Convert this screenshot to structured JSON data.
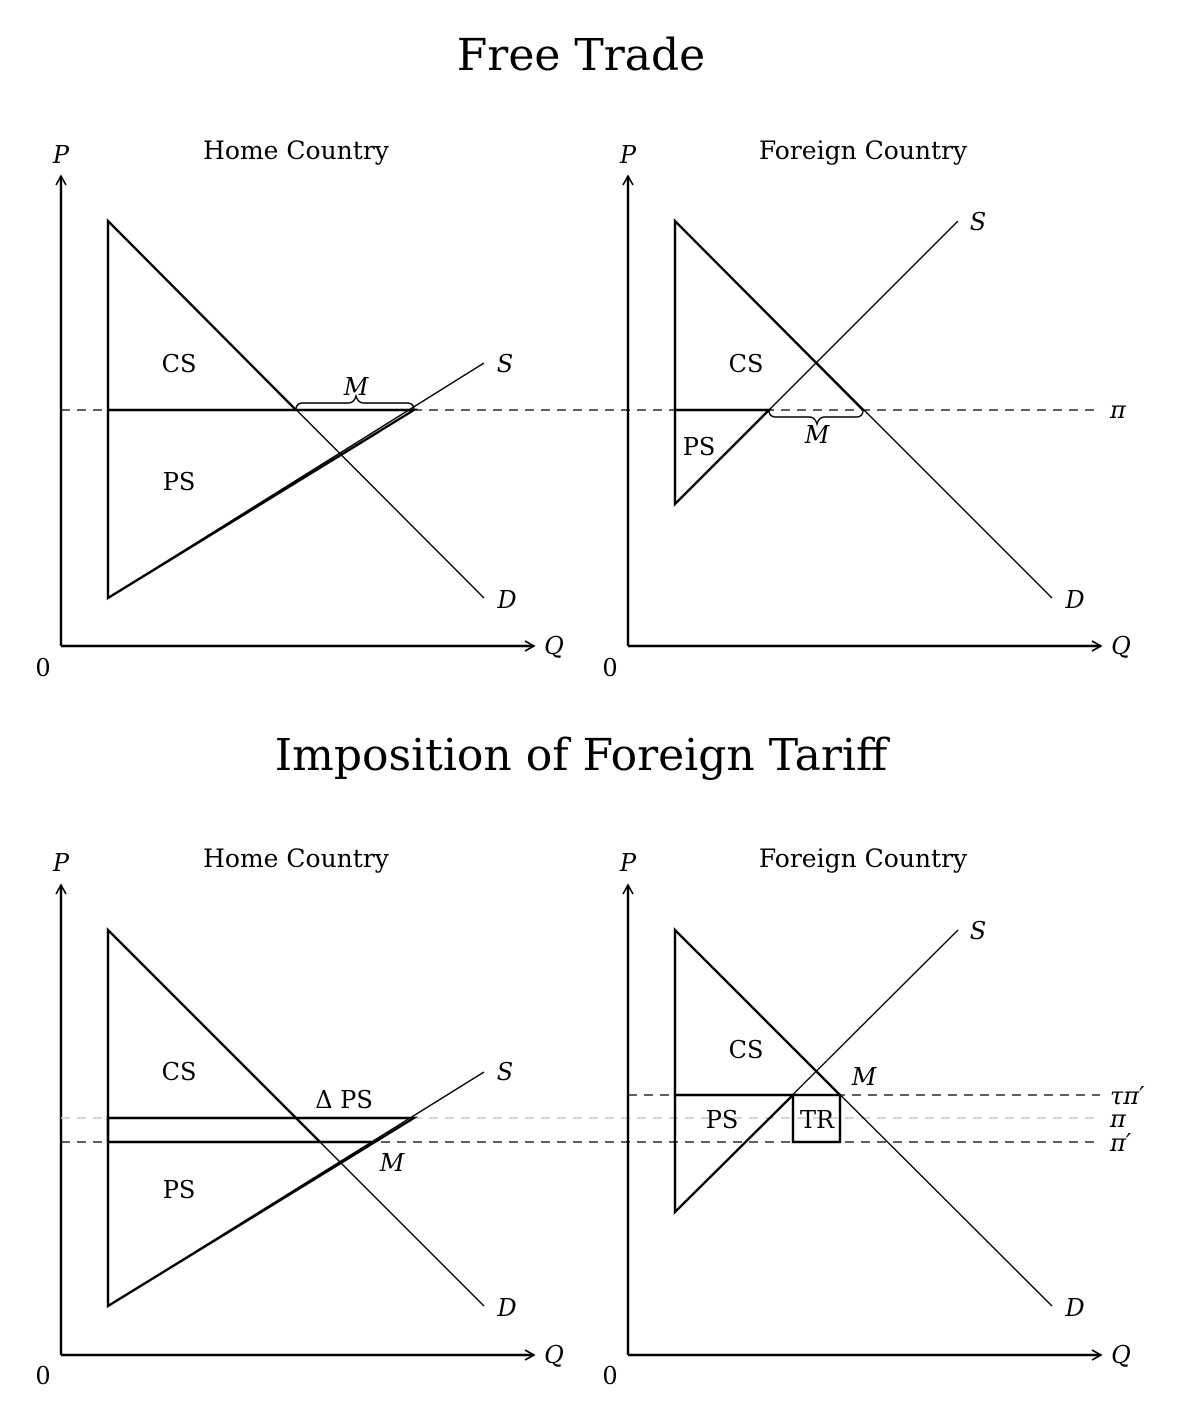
{
  "titles": {
    "top": "Free Trade",
    "bottom": "Imposition of Foreign Tariff"
  },
  "panels": {
    "tl": {
      "subtitle": "Home Country",
      "axis_p": "P",
      "axis_q": "Q",
      "origin": "0",
      "cs": "CS",
      "ps": "PS",
      "m": "M",
      "s": "S",
      "d": "D"
    },
    "tr": {
      "subtitle": "Foreign Country",
      "axis_p": "P",
      "axis_q": "Q",
      "origin": "0",
      "cs": "CS",
      "ps": "PS",
      "m": "M",
      "s": "S",
      "d": "D",
      "pi": "π"
    },
    "bl": {
      "subtitle": "Home Country",
      "axis_p": "P",
      "axis_q": "Q",
      "origin": "0",
      "cs": "CS",
      "ps": "PS",
      "dps": "Δ PS",
      "m": "M",
      "s": "S",
      "d": "D"
    },
    "br": {
      "subtitle": "Foreign Country",
      "axis_p": "P",
      "axis_q": "Q",
      "origin": "0",
      "cs": "CS",
      "ps": "PS",
      "tr": "TR",
      "m": "M",
      "s": "S",
      "d": "D",
      "taupi": "τπ′",
      "pi": "π",
      "piprime": "π′"
    }
  }
}
